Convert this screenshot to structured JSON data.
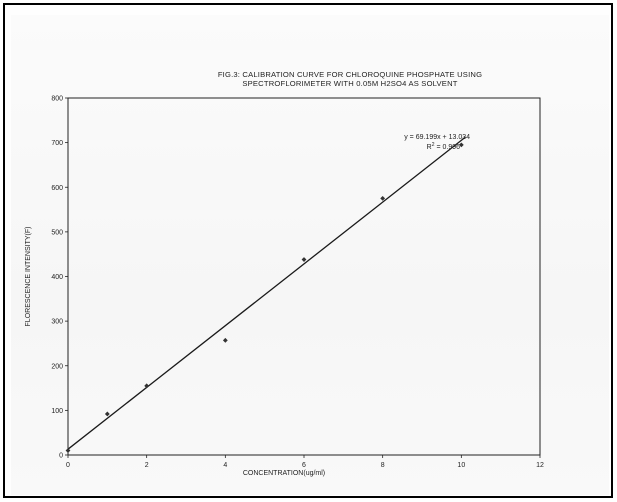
{
  "chart_data": {
    "type": "scatter",
    "title_lines": [
      "FIG.3:  CALIBRATION CURVE FOR CHLOROQUINE PHOSPHATE USING",
      "SPECTROFLORIMETER  WITH 0.05M H2SO4 AS SOLVENT"
    ],
    "xlabel": "CONCENTRATION(ug/ml)",
    "ylabel": "FLORESCENCE INTENSITY(F)",
    "xlim": [
      0,
      12
    ],
    "ylim": [
      0,
      800
    ],
    "x_ticks": [
      0,
      2,
      4,
      6,
      8,
      10,
      12
    ],
    "y_ticks": [
      0,
      100,
      200,
      300,
      400,
      500,
      600,
      700,
      800
    ],
    "series": [
      {
        "points": [
          {
            "x": 0,
            "y": 10
          },
          {
            "x": 1,
            "y": 92
          },
          {
            "x": 2,
            "y": 155
          },
          {
            "x": 4,
            "y": 257
          },
          {
            "x": 6,
            "y": 438
          },
          {
            "x": 8,
            "y": 575
          },
          {
            "x": 10,
            "y": 695
          }
        ]
      }
    ],
    "trendline": {
      "slope": 69.199,
      "intercept": 13.034,
      "x_range": [
        0,
        10.1
      ],
      "equation": "y = 69.199x + 13.034",
      "r2_label": "R",
      "r2_sup": "2",
      "r2_value": " = 0.996"
    },
    "colors": {
      "axis": "#222222",
      "marker": "#333333",
      "line": "#1a1a1a"
    }
  }
}
